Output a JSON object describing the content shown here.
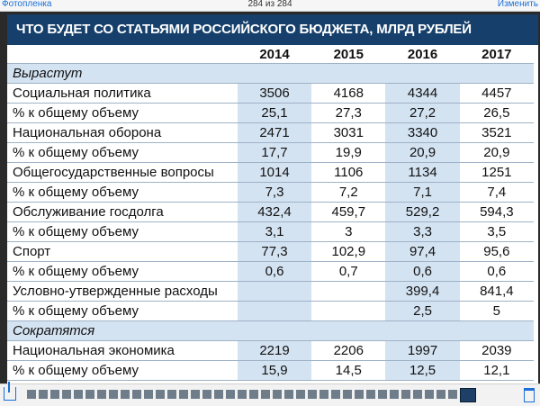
{
  "topbar": {
    "back_label": "Фотопленка",
    "counter": "284 из 284",
    "edit_label": "Изменить"
  },
  "table": {
    "title": "ЧТО БУДЕТ СО СТАТЬЯМИ РОССИЙСКОГО БЮДЖЕТА, МЛРД РУБЛЕЙ",
    "years": [
      "2014",
      "2015",
      "2016",
      "2017"
    ],
    "sections": [
      {
        "title": "Вырастут",
        "rows": [
          {
            "label": "Социальная политика",
            "values": [
              "3506",
              "4168",
              "4344",
              "4457"
            ]
          },
          {
            "label": "% к общему объему",
            "values": [
              "25,1",
              "27,3",
              "27,2",
              "26,5"
            ]
          },
          {
            "label": "Национальная оборона",
            "values": [
              "2471",
              "3031",
              "3340",
              "3521"
            ]
          },
          {
            "label": "% к общему объему",
            "values": [
              "17,7",
              "19,9",
              "20,9",
              "20,9"
            ]
          },
          {
            "label": "Общегосударственные вопросы",
            "values": [
              "1014",
              "1106",
              "1134",
              "1251"
            ]
          },
          {
            "label": "% к общему объему",
            "values": [
              "7,3",
              "7,2",
              "7,1",
              "7,4"
            ]
          },
          {
            "label": "Обслуживание госдолга",
            "values": [
              "432,4",
              "459,7",
              "529,2",
              "594,3"
            ]
          },
          {
            "label": "% к общему объему",
            "values": [
              "3,1",
              "3",
              "3,3",
              "3,5"
            ]
          },
          {
            "label": "Спорт",
            "values": [
              "77,3",
              "102,9",
              "97,4",
              "95,6"
            ]
          },
          {
            "label": "% к общему объему",
            "values": [
              "0,6",
              "0,7",
              "0,6",
              "0,6"
            ]
          },
          {
            "label": "Условно-утвержденные расходы",
            "values": [
              "",
              "",
              "399,4",
              "841,4"
            ]
          },
          {
            "label": "% к общему объему",
            "values": [
              "",
              "",
              "2,5",
              "5"
            ]
          }
        ]
      },
      {
        "title": "Сократятся",
        "rows": [
          {
            "label": "Национальная экономика",
            "values": [
              "2219",
              "2206",
              "1997",
              "2039"
            ]
          },
          {
            "label": "% к общему объему",
            "values": [
              "15,9",
              "14,5",
              "12,5",
              "12,1"
            ]
          }
        ]
      }
    ]
  }
}
